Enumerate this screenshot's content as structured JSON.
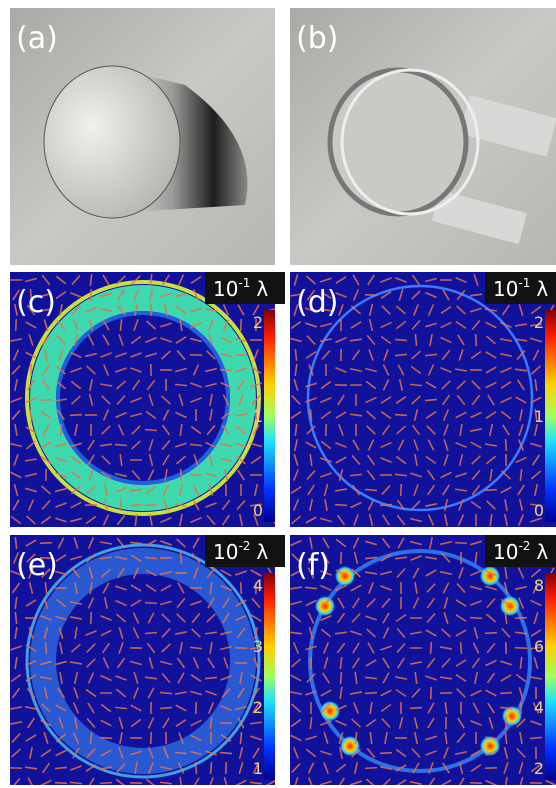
{
  "panels": [
    {
      "label": "(a)"
    },
    {
      "label": "(b)"
    },
    {
      "label": "(c)",
      "scale": {
        "base": "10",
        "exponent": "-1",
        "unit": "λ"
      },
      "colorbar_ticks": [
        2,
        1,
        0
      ]
    },
    {
      "label": "(d)",
      "scale": {
        "base": "10",
        "exponent": "-1",
        "unit": "λ"
      },
      "colorbar_ticks": [
        2,
        1,
        0
      ]
    },
    {
      "label": "(e)",
      "scale": {
        "base": "10",
        "exponent": "-2",
        "unit": "λ"
      },
      "colorbar_ticks": [
        4,
        3,
        2,
        1
      ]
    },
    {
      "label": "(f)",
      "scale": {
        "base": "10",
        "exponent": "-2",
        "unit": "λ"
      },
      "colorbar_ticks": [
        8,
        6,
        4,
        2
      ]
    }
  ]
}
